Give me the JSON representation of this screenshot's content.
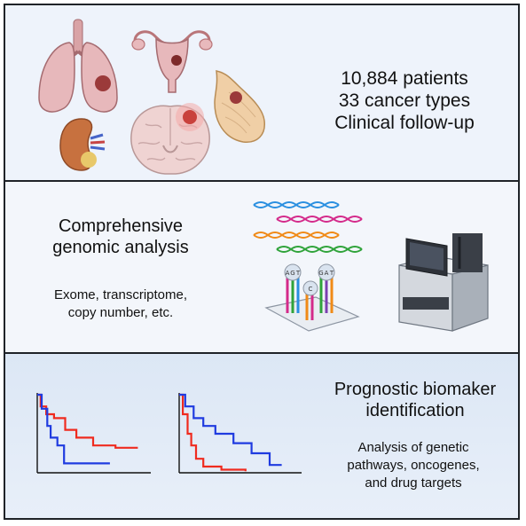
{
  "panels": {
    "cohort": {
      "line1": "10,884 patients",
      "line2": "33 cancer types",
      "line3": "Clinical follow-up"
    },
    "genomics": {
      "title_line1": "Comprehensive",
      "title_line2": "genomic analysis",
      "sub_line1": "Exome, transcriptome,",
      "sub_line2": "copy number, etc.",
      "probe_letters": [
        "A",
        "G",
        "T",
        "C",
        "G",
        "A",
        "T"
      ]
    },
    "prognostic": {
      "title_line1": "Prognostic biomaker",
      "title_line2": "identification",
      "sub_line1": "Analysis of genetic",
      "sub_line2": "pathways, oncogenes,",
      "sub_line3": "and drug targets"
    }
  },
  "icons": [
    "lungs-icon",
    "uterus-icon",
    "breast-icon",
    "kidney-icon",
    "brain-icon",
    "dna-strands-icon",
    "microarray-icon",
    "sequencer-icon"
  ],
  "colors": {
    "red": "#ef2b1f",
    "blue": "#1f3be0",
    "tumor": "#9b3a3a",
    "frame": "#1f2328"
  },
  "chart_data": [
    {
      "type": "line",
      "series": [
        {
          "values": [
            [
              0,
              1.0
            ],
            [
              0.3,
              0.85
            ],
            [
              0.8,
              0.75
            ],
            [
              1.5,
              0.7
            ],
            [
              2.5,
              0.55
            ],
            [
              3.5,
              0.45
            ],
            [
              5,
              0.35
            ],
            [
              7,
              0.32
            ],
            [
              9,
              0.32
            ]
          ]
        },
        {
          "values": [
            [
              0,
              1.0
            ],
            [
              0.4,
              0.82
            ],
            [
              0.9,
              0.6
            ],
            [
              1.2,
              0.45
            ],
            [
              1.8,
              0.35
            ],
            [
              2.4,
              0.12
            ],
            [
              4,
              0.12
            ],
            [
              6.5,
              0.12
            ]
          ]
        }
      ]
    },
    {
      "type": "line",
      "series": [
        {
          "values": [
            [
              0,
              1.0
            ],
            [
              0.3,
              0.75
            ],
            [
              0.7,
              0.5
            ],
            [
              1.0,
              0.35
            ],
            [
              1.4,
              0.18
            ],
            [
              2,
              0.08
            ],
            [
              3.5,
              0.04
            ],
            [
              5.5,
              0.02
            ]
          ]
        },
        {
          "values": [
            [
              0,
              1.0
            ],
            [
              0.5,
              0.85
            ],
            [
              1.2,
              0.7
            ],
            [
              2,
              0.6
            ],
            [
              3,
              0.5
            ],
            [
              4.5,
              0.38
            ],
            [
              6,
              0.25
            ],
            [
              7.5,
              0.1
            ],
            [
              8.5,
              0.1
            ]
          ]
        }
      ]
    }
  ]
}
